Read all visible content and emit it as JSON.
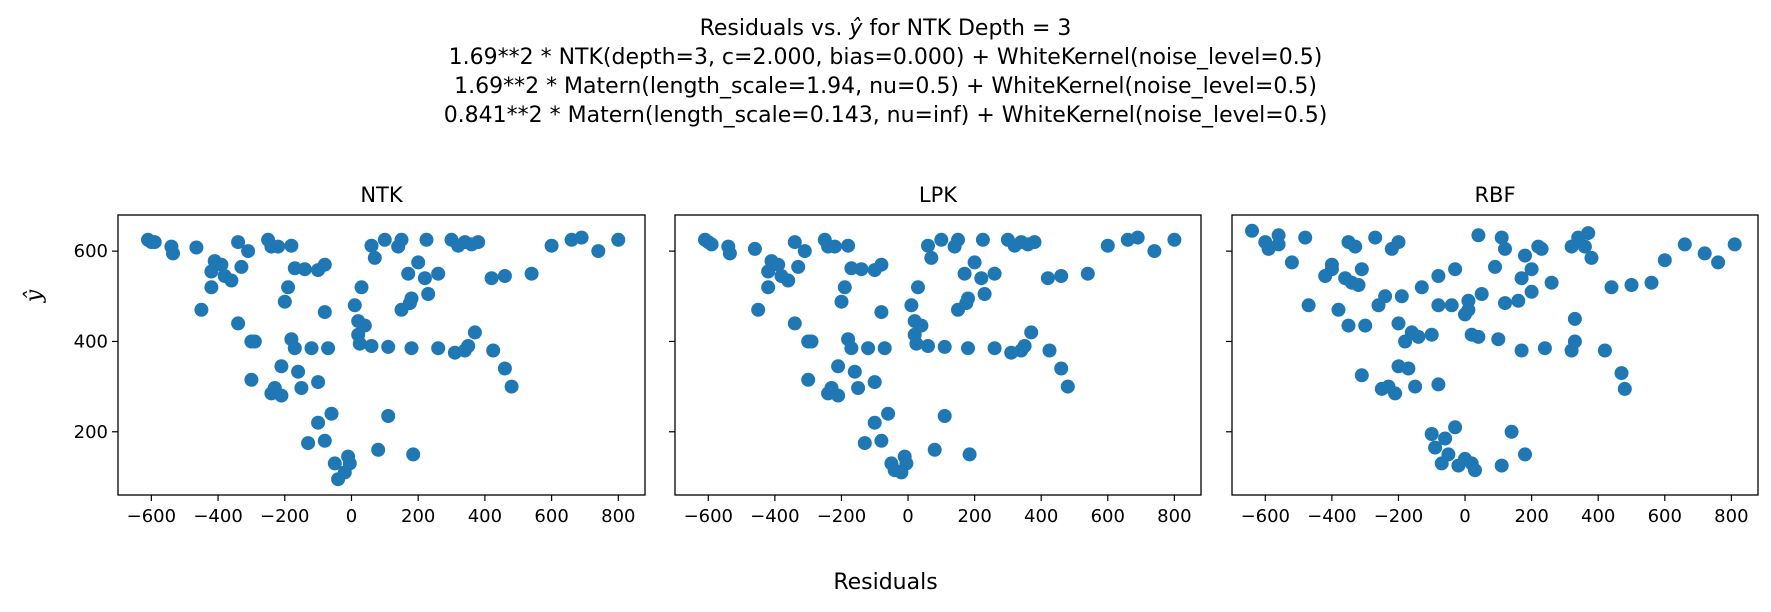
{
  "title": {
    "line1_prefix": "Residuals vs. ",
    "line1_symbol": "ŷ",
    "line1_suffix": " for NTK Depth = 3",
    "line2": "1.69**2 * NTK(depth=3, c=2.000, bias=0.000) + WhiteKernel(noise_level=0.5)",
    "line3": "1.69**2 * Matern(length_scale=1.94, nu=0.5) + WhiteKernel(noise_level=0.5)",
    "line4": "0.841**2 * Matern(length_scale=0.143, nu=inf) + WhiteKernel(noise_level=0.5)"
  },
  "xlabel": "Residuals",
  "ylabel": "ŷ",
  "colors": {
    "marker": "#1f77b4"
  },
  "chart_data": [
    {
      "type": "scatter",
      "title": "NTK",
      "xlim": [
        -700,
        880
      ],
      "ylim": [
        60,
        680
      ],
      "xticks": [
        -600,
        -400,
        -200,
        0,
        200,
        400,
        600,
        800
      ],
      "yticks": [
        200,
        400,
        600
      ],
      "grid": false,
      "points": [
        [
          -610,
          625
        ],
        [
          -600,
          620
        ],
        [
          -590,
          620
        ],
        [
          -540,
          610
        ],
        [
          -535,
          595
        ],
        [
          -465,
          608
        ],
        [
          -420,
          555
        ],
        [
          -410,
          578
        ],
        [
          -390,
          570
        ],
        [
          -380,
          545
        ],
        [
          -360,
          535
        ],
        [
          -340,
          620
        ],
        [
          -330,
          565
        ],
        [
          -310,
          600
        ],
        [
          -300,
          400
        ],
        [
          -290,
          400
        ],
        [
          -250,
          625
        ],
        [
          -240,
          610
        ],
        [
          -220,
          610
        ],
        [
          -200,
          488
        ],
        [
          -190,
          520
        ],
        [
          -180,
          612
        ],
        [
          -170,
          562
        ],
        [
          -140,
          560
        ],
        [
          -100,
          558
        ],
        [
          -80,
          570
        ],
        [
          -420,
          520
        ],
        [
          -450,
          470
        ],
        [
          -340,
          440
        ],
        [
          -300,
          315
        ],
        [
          -240,
          285
        ],
        [
          -230,
          297
        ],
        [
          -210,
          280
        ],
        [
          -210,
          345
        ],
        [
          -180,
          405
        ],
        [
          -170,
          385
        ],
        [
          -160,
          333
        ],
        [
          -150,
          297
        ],
        [
          -120,
          385
        ],
        [
          -100,
          310
        ],
        [
          -80,
          465
        ],
        [
          -70,
          385
        ],
        [
          -130,
          175
        ],
        [
          -100,
          220
        ],
        [
          -80,
          180
        ],
        [
          -60,
          240
        ],
        [
          -50,
          130
        ],
        [
          -40,
          95
        ],
        [
          -20,
          110
        ],
        [
          -10,
          145
        ],
        [
          -5,
          130
        ],
        [
          10,
          480
        ],
        [
          20,
          445
        ],
        [
          20,
          415
        ],
        [
          25,
          395
        ],
        [
          30,
          520
        ],
        [
          40,
          435
        ],
        [
          60,
          390
        ],
        [
          60,
          612
        ],
        [
          70,
          585
        ],
        [
          80,
          160
        ],
        [
          100,
          625
        ],
        [
          110,
          235
        ],
        [
          110,
          388
        ],
        [
          140,
          610
        ],
        [
          150,
          625
        ],
        [
          150,
          470
        ],
        [
          170,
          550
        ],
        [
          175,
          485
        ],
        [
          180,
          495
        ],
        [
          185,
          150
        ],
        [
          180,
          385
        ],
        [
          200,
          575
        ],
        [
          220,
          540
        ],
        [
          225,
          625
        ],
        [
          230,
          505
        ],
        [
          260,
          550
        ],
        [
          260,
          385
        ],
        [
          300,
          625
        ],
        [
          310,
          375
        ],
        [
          320,
          612
        ],
        [
          340,
          380
        ],
        [
          340,
          620
        ],
        [
          350,
          390
        ],
        [
          360,
          615
        ],
        [
          370,
          420
        ],
        [
          380,
          620
        ],
        [
          420,
          540
        ],
        [
          425,
          380
        ],
        [
          460,
          545
        ],
        [
          460,
          340
        ],
        [
          480,
          300
        ],
        [
          540,
          550
        ],
        [
          600,
          612
        ],
        [
          660,
          625
        ],
        [
          690,
          630
        ],
        [
          740,
          600
        ],
        [
          800,
          625
        ]
      ]
    },
    {
      "type": "scatter",
      "title": "LPK",
      "xlim": [
        -700,
        880
      ],
      "ylim": [
        60,
        680
      ],
      "xticks": [
        -600,
        -400,
        -200,
        0,
        200,
        400,
        600,
        800
      ],
      "yticks": [
        200,
        400,
        600
      ],
      "grid": false,
      "points": [
        [
          -610,
          625
        ],
        [
          -600,
          620
        ],
        [
          -590,
          615
        ],
        [
          -540,
          610
        ],
        [
          -535,
          595
        ],
        [
          -460,
          605
        ],
        [
          -420,
          555
        ],
        [
          -410,
          578
        ],
        [
          -390,
          570
        ],
        [
          -380,
          545
        ],
        [
          -360,
          535
        ],
        [
          -340,
          620
        ],
        [
          -330,
          565
        ],
        [
          -310,
          600
        ],
        [
          -300,
          400
        ],
        [
          -290,
          400
        ],
        [
          -250,
          625
        ],
        [
          -240,
          610
        ],
        [
          -220,
          610
        ],
        [
          -200,
          488
        ],
        [
          -190,
          520
        ],
        [
          -180,
          612
        ],
        [
          -170,
          562
        ],
        [
          -140,
          560
        ],
        [
          -100,
          558
        ],
        [
          -80,
          570
        ],
        [
          -420,
          520
        ],
        [
          -450,
          470
        ],
        [
          -340,
          440
        ],
        [
          -300,
          315
        ],
        [
          -240,
          285
        ],
        [
          -230,
          297
        ],
        [
          -210,
          280
        ],
        [
          -210,
          345
        ],
        [
          -180,
          405
        ],
        [
          -170,
          385
        ],
        [
          -160,
          333
        ],
        [
          -150,
          297
        ],
        [
          -120,
          385
        ],
        [
          -100,
          310
        ],
        [
          -80,
          465
        ],
        [
          -70,
          385
        ],
        [
          -130,
          175
        ],
        [
          -100,
          220
        ],
        [
          -80,
          180
        ],
        [
          -60,
          240
        ],
        [
          -50,
          130
        ],
        [
          -40,
          115
        ],
        [
          -20,
          110
        ],
        [
          -10,
          145
        ],
        [
          -5,
          130
        ],
        [
          10,
          480
        ],
        [
          20,
          445
        ],
        [
          20,
          415
        ],
        [
          25,
          395
        ],
        [
          30,
          520
        ],
        [
          40,
          435
        ],
        [
          60,
          390
        ],
        [
          60,
          612
        ],
        [
          70,
          585
        ],
        [
          80,
          160
        ],
        [
          100,
          625
        ],
        [
          110,
          235
        ],
        [
          110,
          388
        ],
        [
          140,
          610
        ],
        [
          150,
          625
        ],
        [
          150,
          470
        ],
        [
          170,
          550
        ],
        [
          175,
          485
        ],
        [
          180,
          495
        ],
        [
          185,
          150
        ],
        [
          180,
          385
        ],
        [
          200,
          575
        ],
        [
          220,
          540
        ],
        [
          225,
          625
        ],
        [
          230,
          505
        ],
        [
          260,
          550
        ],
        [
          260,
          385
        ],
        [
          300,
          625
        ],
        [
          310,
          375
        ],
        [
          320,
          612
        ],
        [
          340,
          380
        ],
        [
          340,
          620
        ],
        [
          350,
          390
        ],
        [
          360,
          615
        ],
        [
          370,
          420
        ],
        [
          380,
          620
        ],
        [
          420,
          540
        ],
        [
          425,
          380
        ],
        [
          460,
          545
        ],
        [
          460,
          340
        ],
        [
          480,
          300
        ],
        [
          540,
          550
        ],
        [
          600,
          612
        ],
        [
          660,
          625
        ],
        [
          690,
          630
        ],
        [
          740,
          600
        ],
        [
          800,
          625
        ]
      ]
    },
    {
      "type": "scatter",
      "title": "RBF",
      "xlim": [
        -700,
        880
      ],
      "ylim": [
        60,
        680
      ],
      "xticks": [
        -600,
        -400,
        -200,
        0,
        200,
        400,
        600,
        800
      ],
      "yticks": [
        200,
        400,
        600
      ],
      "grid": false,
      "points": [
        [
          -640,
          645
        ],
        [
          -600,
          620
        ],
        [
          -590,
          605
        ],
        [
          -560,
          635
        ],
        [
          -560,
          615
        ],
        [
          -520,
          575
        ],
        [
          -480,
          630
        ],
        [
          -470,
          480
        ],
        [
          -420,
          545
        ],
        [
          -400,
          570
        ],
        [
          -400,
          560
        ],
        [
          -380,
          470
        ],
        [
          -360,
          540
        ],
        [
          -350,
          620
        ],
        [
          -350,
          435
        ],
        [
          -340,
          530
        ],
        [
          -330,
          610
        ],
        [
          -320,
          525
        ],
        [
          -310,
          325
        ],
        [
          -310,
          560
        ],
        [
          -300,
          435
        ],
        [
          -270,
          630
        ],
        [
          -260,
          480
        ],
        [
          -250,
          295
        ],
        [
          -240,
          500
        ],
        [
          -230,
          300
        ],
        [
          -220,
          605
        ],
        [
          -210,
          285
        ],
        [
          -200,
          345
        ],
        [
          -200,
          440
        ],
        [
          -200,
          620
        ],
        [
          -190,
          500
        ],
        [
          -180,
          400
        ],
        [
          -170,
          340
        ],
        [
          -160,
          420
        ],
        [
          -150,
          300
        ],
        [
          -140,
          410
        ],
        [
          -130,
          520
        ],
        [
          -100,
          415
        ],
        [
          -100,
          195
        ],
        [
          -90,
          165
        ],
        [
          -80,
          480
        ],
        [
          -80,
          545
        ],
        [
          -80,
          305
        ],
        [
          -70,
          130
        ],
        [
          -60,
          185
        ],
        [
          -50,
          150
        ],
        [
          -40,
          480
        ],
        [
          -30,
          560
        ],
        [
          -30,
          210
        ],
        [
          -20,
          125
        ],
        [
          0,
          460
        ],
        [
          0,
          140
        ],
        [
          10,
          490
        ],
        [
          10,
          470
        ],
        [
          20,
          415
        ],
        [
          20,
          130
        ],
        [
          30,
          115
        ],
        [
          40,
          410
        ],
        [
          40,
          635
        ],
        [
          50,
          505
        ],
        [
          90,
          565
        ],
        [
          100,
          405
        ],
        [
          110,
          125
        ],
        [
          110,
          630
        ],
        [
          120,
          605
        ],
        [
          120,
          485
        ],
        [
          140,
          200
        ],
        [
          160,
          490
        ],
        [
          170,
          380
        ],
        [
          170,
          540
        ],
        [
          180,
          150
        ],
        [
          180,
          590
        ],
        [
          200,
          560
        ],
        [
          200,
          510
        ],
        [
          220,
          610
        ],
        [
          230,
          605
        ],
        [
          240,
          385
        ],
        [
          260,
          530
        ],
        [
          320,
          610
        ],
        [
          320,
          380
        ],
        [
          330,
          450
        ],
        [
          330,
          400
        ],
        [
          340,
          630
        ],
        [
          360,
          610
        ],
        [
          370,
          640
        ],
        [
          380,
          585
        ],
        [
          420,
          380
        ],
        [
          440,
          520
        ],
        [
          470,
          330
        ],
        [
          480,
          295
        ],
        [
          500,
          525
        ],
        [
          560,
          530
        ],
        [
          600,
          580
        ],
        [
          660,
          615
        ],
        [
          720,
          595
        ],
        [
          760,
          575
        ],
        [
          810,
          615
        ]
      ]
    }
  ]
}
